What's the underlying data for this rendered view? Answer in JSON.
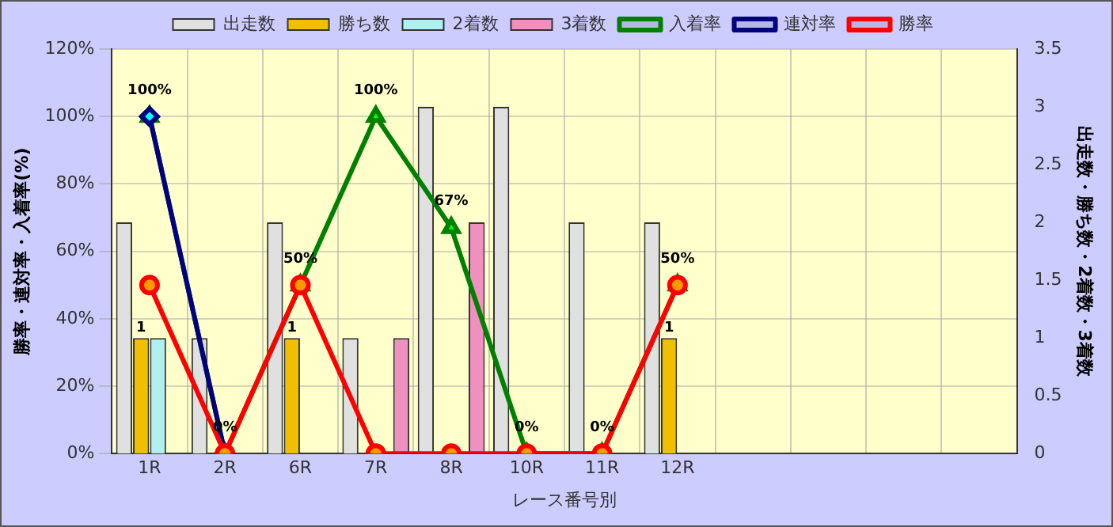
{
  "chart_data": {
    "type": "bar",
    "xlabel": "レース番号別",
    "ylabel": "勝率・連対率・入着率(%)",
    "y2label": "出走数・勝ち数・2着数・3着数",
    "categories": [
      "1R",
      "2R",
      "6R",
      "7R",
      "8R",
      "10R",
      "11R",
      "12R",
      null,
      null,
      null,
      null
    ],
    "series": [
      {
        "name": "出走数",
        "axis": "y2",
        "color": "#e0e0e0",
        "values": [
          2,
          1,
          2,
          1,
          3,
          3,
          2,
          2,
          null,
          null,
          null,
          null
        ]
      },
      {
        "name": "勝ち数",
        "axis": "y2",
        "color": "#f0c000",
        "values": [
          1,
          0,
          1,
          0,
          0,
          0,
          0,
          1,
          null,
          null,
          null,
          null
        ],
        "value_labels": [
          "1",
          null,
          "1",
          null,
          null,
          null,
          null,
          "1",
          null,
          null,
          null,
          null
        ]
      },
      {
        "name": "2着数",
        "axis": "y2",
        "color": "#b0f0f0",
        "values": [
          1,
          0,
          0,
          0,
          0,
          0,
          0,
          0,
          null,
          null,
          null,
          null
        ]
      },
      {
        "name": "3着数",
        "axis": "y2",
        "color": "#f090c0",
        "values": [
          0,
          0,
          0,
          1,
          2,
          0,
          0,
          0,
          null,
          null,
          null,
          null
        ]
      },
      {
        "name": "入着率",
        "type": "line",
        "color": "#008000",
        "marker": "triangle",
        "values": [
          100,
          0,
          50,
          100,
          67,
          0,
          0,
          50,
          null,
          null,
          null,
          null
        ],
        "value_labels": [
          "100%",
          "0%",
          "50%",
          "100%",
          "67%",
          "0%",
          "0%",
          "50%",
          null,
          null,
          null,
          null
        ]
      },
      {
        "name": "連対率",
        "type": "line",
        "color": "#000080",
        "marker": "diamond",
        "values": [
          100,
          0,
          null,
          null,
          null,
          null,
          null,
          null,
          null,
          null,
          null,
          null
        ]
      },
      {
        "name": "勝率",
        "type": "line",
        "color": "#ff0000",
        "marker": "circle",
        "values": [
          50,
          0,
          50,
          0,
          0,
          0,
          0,
          50,
          null,
          null,
          null,
          null
        ]
      }
    ],
    "ylim": [
      0,
      120
    ],
    "yticks": [
      {
        "value": 0,
        "label": "0%"
      },
      {
        "value": 20,
        "label": "20%"
      },
      {
        "value": 40,
        "label": "40%"
      },
      {
        "value": 60,
        "label": "60%"
      },
      {
        "value": 80,
        "label": "80%"
      },
      {
        "value": 100,
        "label": "100%"
      },
      {
        "value": 120,
        "label": "120%"
      }
    ],
    "y2lim": [
      0,
      3.5
    ],
    "y2ticks": [
      0,
      0.5,
      1,
      1.5,
      2,
      2.5,
      3,
      3.5
    ],
    "grid": true,
    "legend": "top"
  }
}
